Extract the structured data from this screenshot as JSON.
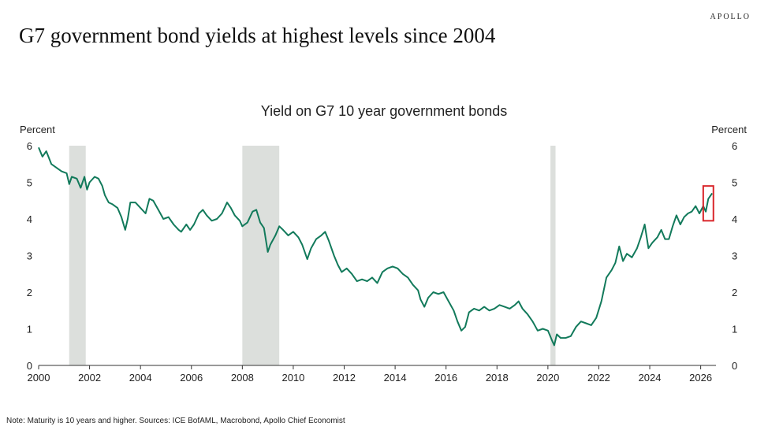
{
  "brand": "APOLLO",
  "headline": "G7 government bond yields at highest levels since 2004",
  "note": "Note: Maturity is 10 years and higher. Sources: ICE BofAML, Macrobond, Apollo Chief Economist",
  "colors": {
    "line": "#127a5b",
    "recession": "#dcdfdc",
    "highlight": "#d9252a",
    "axis": "#333333"
  },
  "chart_data": {
    "type": "line",
    "title": "Yield on G7 10 year government bonds",
    "ylabel_left": "Percent",
    "ylabel_right": "Percent",
    "xlim": [
      2000,
      2026.6
    ],
    "ylim": [
      0,
      6
    ],
    "x_ticks": [
      2000,
      2002,
      2004,
      2006,
      2008,
      2010,
      2012,
      2014,
      2016,
      2018,
      2020,
      2022,
      2024,
      2026
    ],
    "y_ticks": [
      0,
      1,
      2,
      3,
      4,
      5,
      6
    ],
    "grid": false,
    "recession_shading": [
      [
        2001.2,
        2001.85
      ],
      [
        2008.0,
        2009.45
      ],
      [
        2020.1,
        2020.3
      ]
    ],
    "highlight_box": {
      "x": [
        2026.1,
        2026.5
      ],
      "y": [
        3.95,
        4.9
      ]
    },
    "series": [
      {
        "values": [
          [
            2000.0,
            5.95
          ],
          [
            2000.15,
            5.7
          ],
          [
            2000.3,
            5.85
          ],
          [
            2000.5,
            5.5
          ],
          [
            2000.7,
            5.4
          ],
          [
            2000.9,
            5.3
          ],
          [
            2001.1,
            5.25
          ],
          [
            2001.2,
            4.95
          ],
          [
            2001.3,
            5.15
          ],
          [
            2001.5,
            5.1
          ],
          [
            2001.65,
            4.85
          ],
          [
            2001.8,
            5.15
          ],
          [
            2001.9,
            4.8
          ],
          [
            2002.0,
            5.0
          ],
          [
            2002.2,
            5.15
          ],
          [
            2002.35,
            5.1
          ],
          [
            2002.5,
            4.9
          ],
          [
            2002.6,
            4.65
          ],
          [
            2002.75,
            4.45
          ],
          [
            2002.9,
            4.4
          ],
          [
            2003.1,
            4.3
          ],
          [
            2003.25,
            4.05
          ],
          [
            2003.4,
            3.7
          ],
          [
            2003.5,
            4.0
          ],
          [
            2003.6,
            4.45
          ],
          [
            2003.8,
            4.45
          ],
          [
            2004.0,
            4.3
          ],
          [
            2004.2,
            4.15
          ],
          [
            2004.35,
            4.55
          ],
          [
            2004.5,
            4.5
          ],
          [
            2004.7,
            4.25
          ],
          [
            2004.9,
            4.0
          ],
          [
            2005.1,
            4.05
          ],
          [
            2005.3,
            3.85
          ],
          [
            2005.5,
            3.7
          ],
          [
            2005.6,
            3.65
          ],
          [
            2005.8,
            3.85
          ],
          [
            2005.95,
            3.7
          ],
          [
            2006.1,
            3.85
          ],
          [
            2006.3,
            4.15
          ],
          [
            2006.45,
            4.25
          ],
          [
            2006.6,
            4.1
          ],
          [
            2006.8,
            3.95
          ],
          [
            2007.0,
            4.0
          ],
          [
            2007.2,
            4.15
          ],
          [
            2007.4,
            4.45
          ],
          [
            2007.55,
            4.3
          ],
          [
            2007.7,
            4.1
          ],
          [
            2007.9,
            3.95
          ],
          [
            2008.0,
            3.8
          ],
          [
            2008.2,
            3.9
          ],
          [
            2008.4,
            4.2
          ],
          [
            2008.55,
            4.25
          ],
          [
            2008.7,
            3.9
          ],
          [
            2008.85,
            3.75
          ],
          [
            2009.0,
            3.1
          ],
          [
            2009.1,
            3.3
          ],
          [
            2009.3,
            3.55
          ],
          [
            2009.45,
            3.8
          ],
          [
            2009.6,
            3.7
          ],
          [
            2009.8,
            3.55
          ],
          [
            2010.0,
            3.65
          ],
          [
            2010.2,
            3.5
          ],
          [
            2010.35,
            3.3
          ],
          [
            2010.55,
            2.9
          ],
          [
            2010.7,
            3.2
          ],
          [
            2010.9,
            3.45
          ],
          [
            2011.1,
            3.55
          ],
          [
            2011.25,
            3.65
          ],
          [
            2011.4,
            3.4
          ],
          [
            2011.6,
            3.0
          ],
          [
            2011.75,
            2.75
          ],
          [
            2011.9,
            2.55
          ],
          [
            2012.1,
            2.65
          ],
          [
            2012.3,
            2.5
          ],
          [
            2012.5,
            2.3
          ],
          [
            2012.7,
            2.35
          ],
          [
            2012.9,
            2.3
          ],
          [
            2013.1,
            2.4
          ],
          [
            2013.3,
            2.25
          ],
          [
            2013.5,
            2.55
          ],
          [
            2013.7,
            2.65
          ],
          [
            2013.9,
            2.7
          ],
          [
            2014.1,
            2.65
          ],
          [
            2014.3,
            2.5
          ],
          [
            2014.5,
            2.4
          ],
          [
            2014.7,
            2.2
          ],
          [
            2014.9,
            2.05
          ],
          [
            2015.0,
            1.8
          ],
          [
            2015.15,
            1.6
          ],
          [
            2015.3,
            1.85
          ],
          [
            2015.5,
            2.0
          ],
          [
            2015.7,
            1.95
          ],
          [
            2015.9,
            2.0
          ],
          [
            2016.1,
            1.75
          ],
          [
            2016.3,
            1.5
          ],
          [
            2016.45,
            1.2
          ],
          [
            2016.6,
            0.95
          ],
          [
            2016.75,
            1.05
          ],
          [
            2016.9,
            1.45
          ],
          [
            2017.1,
            1.55
          ],
          [
            2017.3,
            1.5
          ],
          [
            2017.5,
            1.6
          ],
          [
            2017.7,
            1.5
          ],
          [
            2017.9,
            1.55
          ],
          [
            2018.1,
            1.65
          ],
          [
            2018.3,
            1.6
          ],
          [
            2018.5,
            1.55
          ],
          [
            2018.7,
            1.65
          ],
          [
            2018.85,
            1.75
          ],
          [
            2019.0,
            1.55
          ],
          [
            2019.2,
            1.4
          ],
          [
            2019.4,
            1.2
          ],
          [
            2019.6,
            0.95
          ],
          [
            2019.8,
            1.0
          ],
          [
            2020.0,
            0.95
          ],
          [
            2020.15,
            0.7
          ],
          [
            2020.25,
            0.55
          ],
          [
            2020.35,
            0.85
          ],
          [
            2020.5,
            0.75
          ],
          [
            2020.7,
            0.75
          ],
          [
            2020.9,
            0.8
          ],
          [
            2021.1,
            1.05
          ],
          [
            2021.3,
            1.2
          ],
          [
            2021.5,
            1.15
          ],
          [
            2021.7,
            1.1
          ],
          [
            2021.9,
            1.3
          ],
          [
            2022.1,
            1.75
          ],
          [
            2022.3,
            2.4
          ],
          [
            2022.5,
            2.6
          ],
          [
            2022.65,
            2.8
          ],
          [
            2022.8,
            3.25
          ],
          [
            2022.95,
            2.85
          ],
          [
            2023.1,
            3.05
          ],
          [
            2023.3,
            2.95
          ],
          [
            2023.5,
            3.2
          ],
          [
            2023.65,
            3.5
          ],
          [
            2023.8,
            3.85
          ],
          [
            2023.95,
            3.2
          ],
          [
            2024.1,
            3.35
          ],
          [
            2024.3,
            3.5
          ],
          [
            2024.45,
            3.7
          ],
          [
            2024.6,
            3.45
          ],
          [
            2024.75,
            3.45
          ],
          [
            2024.9,
            3.8
          ],
          [
            2025.05,
            4.1
          ],
          [
            2025.2,
            3.85
          ],
          [
            2025.35,
            4.05
          ],
          [
            2025.5,
            4.15
          ],
          [
            2025.65,
            4.2
          ],
          [
            2025.8,
            4.35
          ],
          [
            2025.95,
            4.15
          ],
          [
            2026.1,
            4.35
          ],
          [
            2026.2,
            4.2
          ],
          [
            2026.3,
            4.55
          ],
          [
            2026.45,
            4.7
          ]
        ]
      }
    ]
  }
}
